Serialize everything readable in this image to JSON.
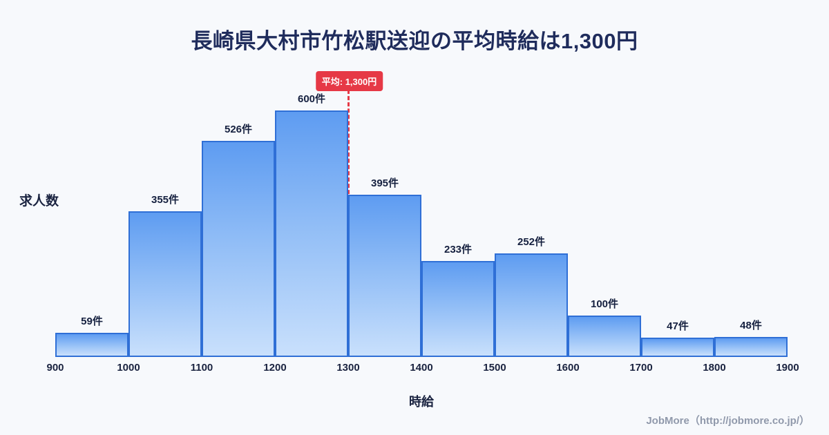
{
  "title": "長崎県大村市竹松駅送迎の平均時給は1,300円",
  "footer_credit": "JobMore（http://jobmore.co.jp/）",
  "chart_data": {
    "type": "bar",
    "title": "長崎県大村市竹松駅送迎の平均時給は1,300円",
    "xlabel": "時給",
    "ylabel": "求人数",
    "bin_edges": [
      900,
      1000,
      1100,
      1200,
      1300,
      1400,
      1500,
      1600,
      1700,
      1800,
      1900
    ],
    "x_tick_labels": [
      "900",
      "1000",
      "1100",
      "1200",
      "1300",
      "1400",
      "1500",
      "1600",
      "1700",
      "1800",
      "1900"
    ],
    "values": [
      59,
      355,
      526,
      600,
      395,
      233,
      252,
      100,
      47,
      48
    ],
    "bar_labels": [
      "59件",
      "355件",
      "526件",
      "600件",
      "395件",
      "233件",
      "252件",
      "100件",
      "47件",
      "48件"
    ],
    "ylim": [
      0,
      650
    ],
    "grid": false,
    "legend": false,
    "average_value": 1300,
    "average_label": "平均: 1,300円",
    "colors": {
      "background": "#f7f9fc",
      "title_text": "#1f2c5c",
      "axis_text": "#1a2340",
      "bar_fill_top": "#5e9cf1",
      "bar_fill_bottom": "#c9e0fc",
      "bar_border": "#2f6fd6",
      "average_line": "#e63946",
      "average_badge_bg": "#e63946",
      "average_badge_text": "#ffffff",
      "footer_text": "#9099ab"
    }
  }
}
